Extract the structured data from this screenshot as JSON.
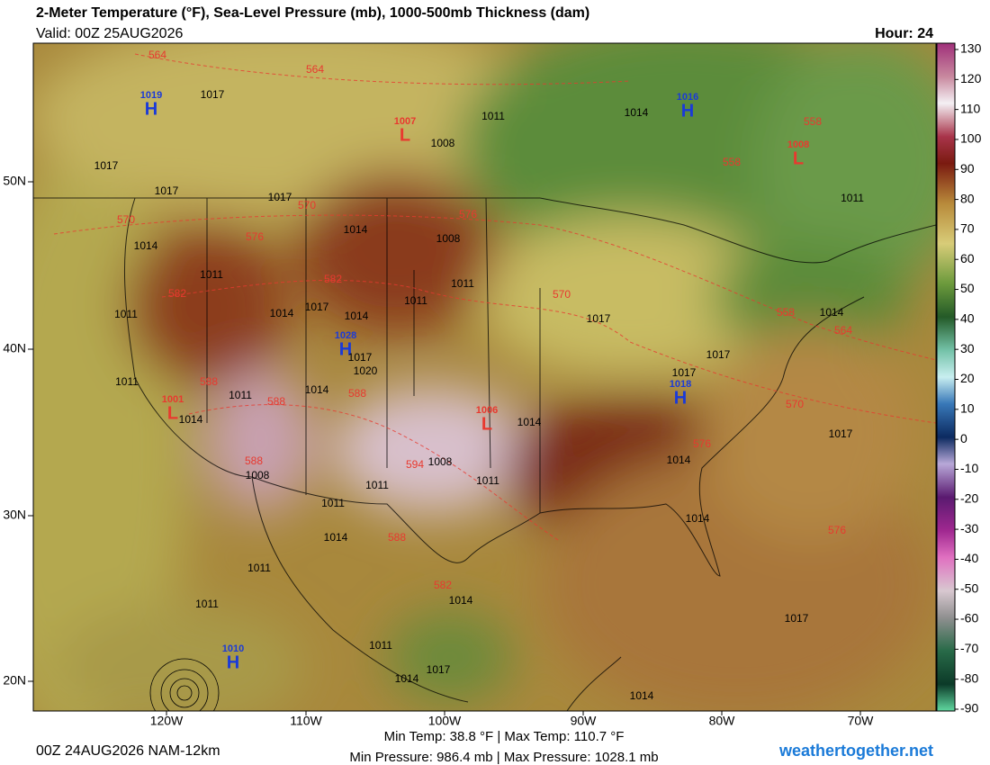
{
  "header": {
    "title": "2-Meter Temperature (°F), Sea-Level Pressure (mb), 1000-500mb Thickness (dam)",
    "valid": "Valid: 00Z 25AUG2026",
    "hour": "Hour: 24"
  },
  "colorbar": {
    "ticks": [
      130,
      120,
      110,
      100,
      90,
      80,
      70,
      60,
      50,
      40,
      30,
      20,
      10,
      0,
      -10,
      -20,
      -30,
      -40,
      -50,
      -60,
      -70,
      -80,
      -90
    ]
  },
  "latitude_labels": [
    "50N",
    "40N",
    "30N",
    "20N"
  ],
  "longitude_labels": [
    "120W",
    "110W",
    "100W",
    "90W",
    "80W",
    "70W"
  ],
  "pressure_centers": [
    {
      "letter": "H",
      "value": 1019
    },
    {
      "letter": "H",
      "value": 1016
    },
    {
      "letter": "L",
      "value": 1007
    },
    {
      "letter": "L",
      "value": 1008
    },
    {
      "letter": "H",
      "value": 1028
    },
    {
      "letter": "L",
      "value": 1006
    },
    {
      "letter": "H",
      "value": 1018
    },
    {
      "letter": "L",
      "value": 1001
    },
    {
      "letter": "H",
      "value": 1010
    }
  ],
  "isobar_labels": [
    1017,
    1011,
    1014,
    1008,
    1017,
    1017,
    1017,
    1011,
    1014,
    1008,
    1014,
    1011,
    1011,
    1011,
    1017,
    1014,
    1014,
    1011,
    1017,
    1014,
    1017,
    1020,
    1017,
    1017,
    1014,
    1011,
    1014,
    1014,
    1017,
    1008,
    1008,
    1014,
    1011,
    1011,
    1011,
    1014,
    1014,
    1011,
    1011,
    1014,
    1017,
    1011,
    1017,
    1014,
    1014,
    1011
  ],
  "thickness_labels": [
    564,
    564,
    558,
    558,
    570,
    576,
    570,
    576,
    582,
    582,
    570,
    558,
    564,
    588,
    588,
    588,
    570,
    576,
    588,
    594,
    588,
    582,
    576
  ],
  "footer": {
    "run": "00Z 24AUG2026 NAM-12km",
    "temp_stats": "Min Temp:  38.8 °F | Max Temp: 110.7 °F",
    "pressure_stats": "Min Pressure: 986.4 mb | Max Pressure: 1028.1 mb",
    "site": "weathertogether.net"
  }
}
